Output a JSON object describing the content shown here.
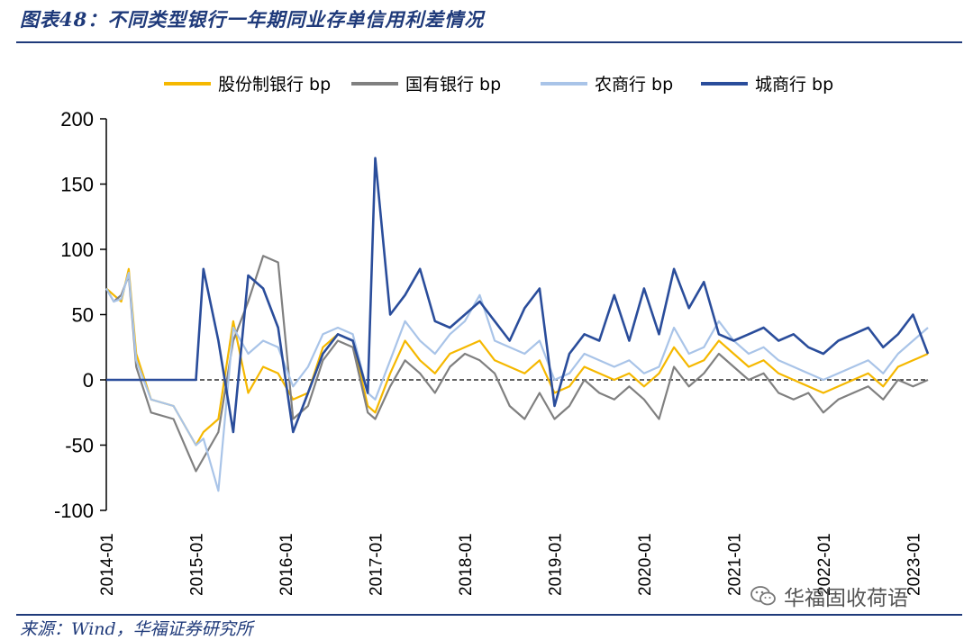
{
  "figure": {
    "title": "图表48：不同类型银行一年期同业存单信用利差情况",
    "source": "来源：Wind，华福证券研究所",
    "watermark": "华福固收荷语",
    "watermark_icon": "wechat-icon"
  },
  "chart_data": {
    "type": "line",
    "xlabel": "",
    "ylabel": "",
    "ylim": [
      -100,
      200
    ],
    "yticks": [
      -100,
      -50,
      0,
      50,
      100,
      150,
      200
    ],
    "xlim": [
      "2014-01",
      "2023-03"
    ],
    "xticks": [
      "2014-01",
      "2015-01",
      "2016-01",
      "2017-01",
      "2018-01",
      "2019-01",
      "2020-01",
      "2021-01",
      "2022-01",
      "2023-01"
    ],
    "legend_position": "top",
    "zero_line": "dashed",
    "grid": false,
    "series": [
      {
        "name": "股份制银行 bp",
        "color": "#f5b800",
        "x": [
          "2014-01",
          "2014-02",
          "2014-03",
          "2014-04",
          "2014-05",
          "2014-07",
          "2014-10",
          "2015-01",
          "2015-02",
          "2015-04",
          "2015-06",
          "2015-08",
          "2015-10",
          "2015-12",
          "2016-02",
          "2016-04",
          "2016-06",
          "2016-08",
          "2016-10",
          "2016-12",
          "2017-01",
          "2017-03",
          "2017-05",
          "2017-07",
          "2017-09",
          "2017-11",
          "2018-01",
          "2018-03",
          "2018-05",
          "2018-07",
          "2018-09",
          "2018-11",
          "2019-01",
          "2019-03",
          "2019-05",
          "2019-07",
          "2019-09",
          "2019-11",
          "2020-01",
          "2020-03",
          "2020-05",
          "2020-07",
          "2020-09",
          "2020-11",
          "2021-01",
          "2021-03",
          "2021-05",
          "2021-07",
          "2021-09",
          "2021-11",
          "2022-01",
          "2022-03",
          "2022-05",
          "2022-07",
          "2022-09",
          "2022-11",
          "2023-01",
          "2023-03"
        ],
        "values": [
          70,
          65,
          60,
          85,
          20,
          -15,
          -20,
          -50,
          -40,
          -30,
          45,
          -10,
          10,
          5,
          -15,
          -10,
          25,
          35,
          30,
          -20,
          -25,
          5,
          30,
          15,
          5,
          20,
          25,
          30,
          15,
          10,
          5,
          15,
          -10,
          -5,
          10,
          5,
          0,
          5,
          -5,
          5,
          25,
          10,
          15,
          30,
          20,
          10,
          15,
          5,
          0,
          -5,
          -10,
          -5,
          0,
          5,
          -5,
          10,
          15,
          20
        ]
      },
      {
        "name": "国有银行 bp",
        "color": "#808080",
        "x": [
          "2014-01",
          "2014-02",
          "2014-03",
          "2014-04",
          "2014-05",
          "2014-07",
          "2014-10",
          "2015-01",
          "2015-02",
          "2015-04",
          "2015-06",
          "2015-08",
          "2015-10",
          "2015-12",
          "2016-02",
          "2016-04",
          "2016-06",
          "2016-08",
          "2016-10",
          "2016-12",
          "2017-01",
          "2017-03",
          "2017-05",
          "2017-07",
          "2017-09",
          "2017-11",
          "2018-01",
          "2018-03",
          "2018-05",
          "2018-07",
          "2018-09",
          "2018-11",
          "2019-01",
          "2019-03",
          "2019-05",
          "2019-07",
          "2019-09",
          "2019-11",
          "2020-01",
          "2020-03",
          "2020-05",
          "2020-07",
          "2020-09",
          "2020-11",
          "2021-01",
          "2021-03",
          "2021-05",
          "2021-07",
          "2021-09",
          "2021-11",
          "2022-01",
          "2022-03",
          "2022-05",
          "2022-07",
          "2022-09",
          "2022-11",
          "2023-01",
          "2023-03"
        ],
        "values": [
          70,
          60,
          65,
          80,
          10,
          -25,
          -30,
          -70,
          -60,
          -40,
          30,
          60,
          95,
          90,
          -30,
          -20,
          15,
          30,
          25,
          -25,
          -30,
          -5,
          15,
          5,
          -10,
          10,
          20,
          15,
          5,
          -20,
          -30,
          -10,
          -30,
          -20,
          0,
          -10,
          -15,
          -5,
          -15,
          -30,
          10,
          -5,
          5,
          20,
          10,
          0,
          5,
          -10,
          -15,
          -10,
          -25,
          -15,
          -10,
          -5,
          -15,
          0,
          -5,
          0
        ]
      },
      {
        "name": "农商行 bp",
        "color": "#a9c4e8",
        "x": [
          "2014-01",
          "2014-02",
          "2014-03",
          "2014-04",
          "2014-05",
          "2014-07",
          "2014-10",
          "2015-01",
          "2015-02",
          "2015-04",
          "2015-06",
          "2015-08",
          "2015-10",
          "2015-12",
          "2016-02",
          "2016-04",
          "2016-06",
          "2016-08",
          "2016-10",
          "2016-12",
          "2017-01",
          "2017-03",
          "2017-05",
          "2017-07",
          "2017-09",
          "2017-11",
          "2018-01",
          "2018-03",
          "2018-05",
          "2018-07",
          "2018-09",
          "2018-11",
          "2019-01",
          "2019-03",
          "2019-05",
          "2019-07",
          "2019-09",
          "2019-11",
          "2020-01",
          "2020-03",
          "2020-05",
          "2020-07",
          "2020-09",
          "2020-11",
          "2021-01",
          "2021-03",
          "2021-05",
          "2021-07",
          "2021-09",
          "2021-11",
          "2022-01",
          "2022-03",
          "2022-05",
          "2022-07",
          "2022-09",
          "2022-11",
          "2023-01",
          "2023-03"
        ],
        "values": [
          70,
          60,
          62,
          82,
          15,
          -15,
          -20,
          -50,
          -45,
          -85,
          40,
          20,
          30,
          25,
          -5,
          10,
          35,
          40,
          35,
          -10,
          -15,
          15,
          45,
          30,
          20,
          35,
          45,
          65,
          30,
          25,
          20,
          30,
          0,
          5,
          20,
          15,
          10,
          15,
          5,
          10,
          40,
          20,
          25,
          45,
          30,
          20,
          25,
          15,
          10,
          5,
          0,
          5,
          10,
          15,
          5,
          20,
          30,
          40
        ]
      },
      {
        "name": "城商行 bp",
        "color": "#2a4d9b",
        "x": [
          "2014-01",
          "2014-02",
          "2014-03",
          "2014-04",
          "2014-05",
          "2014-07",
          "2014-10",
          "2015-01",
          "2015-02",
          "2015-04",
          "2015-06",
          "2015-08",
          "2015-10",
          "2015-12",
          "2016-02",
          "2016-04",
          "2016-06",
          "2016-08",
          "2016-10",
          "2016-12",
          "2017-01",
          "2017-03",
          "2017-05",
          "2017-07",
          "2017-09",
          "2017-11",
          "2018-01",
          "2018-03",
          "2018-05",
          "2018-07",
          "2018-09",
          "2018-11",
          "2019-01",
          "2019-03",
          "2019-05",
          "2019-07",
          "2019-09",
          "2019-11",
          "2020-01",
          "2020-03",
          "2020-05",
          "2020-07",
          "2020-09",
          "2020-11",
          "2021-01",
          "2021-03",
          "2021-05",
          "2021-07",
          "2021-09",
          "2021-11",
          "2022-01",
          "2022-03",
          "2022-05",
          "2022-07",
          "2022-09",
          "2022-11",
          "2023-01",
          "2023-03"
        ],
        "values": [
          0,
          0,
          0,
          0,
          0,
          0,
          0,
          0,
          85,
          30,
          -40,
          80,
          70,
          40,
          -40,
          -10,
          20,
          35,
          30,
          -10,
          170,
          50,
          65,
          85,
          45,
          40,
          50,
          60,
          45,
          30,
          55,
          70,
          -20,
          20,
          35,
          30,
          65,
          30,
          70,
          35,
          85,
          55,
          75,
          35,
          30,
          35,
          40,
          30,
          35,
          25,
          20,
          30,
          35,
          40,
          25,
          35,
          50,
          20
        ]
      }
    ]
  }
}
